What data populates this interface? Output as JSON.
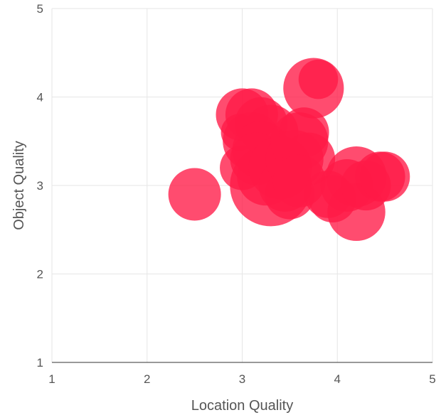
{
  "chart_data": {
    "type": "scatter",
    "variant": "bubble",
    "xlabel": "Location Quality",
    "ylabel": "Object Quality",
    "xlim": [
      1,
      5
    ],
    "ylim": [
      1,
      5
    ],
    "xticks": [
      1,
      2,
      3,
      4,
      5
    ],
    "yticks": [
      1,
      2,
      3,
      4,
      5
    ],
    "grid": true,
    "legend": "none",
    "bubble_color": "#ff1a47",
    "bubble_opacity": 0.78,
    "series": [
      {
        "points": [
          {
            "x": 2.5,
            "y": 2.9,
            "r": 1
          },
          {
            "x": 3.0,
            "y": 3.8,
            "r": 1
          },
          {
            "x": 3.1,
            "y": 3.8,
            "r": 1
          },
          {
            "x": 2.97,
            "y": 3.6,
            "r": 0.7
          },
          {
            "x": 3.2,
            "y": 3.7,
            "r": 1
          },
          {
            "x": 3.3,
            "y": 3.6,
            "r": 1.05
          },
          {
            "x": 3.1,
            "y": 3.5,
            "r": 1.1
          },
          {
            "x": 3.0,
            "y": 3.2,
            "r": 0.85
          },
          {
            "x": 3.2,
            "y": 3.4,
            "r": 1.1
          },
          {
            "x": 3.15,
            "y": 3.3,
            "r": 1
          },
          {
            "x": 3.25,
            "y": 3.1,
            "r": 1.1
          },
          {
            "x": 3.3,
            "y": 3.0,
            "r": 1.55
          },
          {
            "x": 3.4,
            "y": 3.2,
            "r": 1.2
          },
          {
            "x": 3.45,
            "y": 3.0,
            "r": 1
          },
          {
            "x": 3.5,
            "y": 2.9,
            "r": 0.95
          },
          {
            "x": 3.55,
            "y": 3.3,
            "r": 1.1
          },
          {
            "x": 3.6,
            "y": 3.5,
            "r": 1.1
          },
          {
            "x": 3.65,
            "y": 3.6,
            "r": 0.95
          },
          {
            "x": 3.7,
            "y": 3.3,
            "r": 1
          },
          {
            "x": 3.6,
            "y": 3.05,
            "r": 1
          },
          {
            "x": 3.75,
            "y": 4.1,
            "r": 1.15
          },
          {
            "x": 3.8,
            "y": 4.2,
            "r": 0.75
          },
          {
            "x": 3.9,
            "y": 2.9,
            "r": 0.9
          },
          {
            "x": 3.95,
            "y": 2.85,
            "r": 0.9
          },
          {
            "x": 4.1,
            "y": 3.0,
            "r": 1
          },
          {
            "x": 4.2,
            "y": 3.1,
            "r": 1.15
          },
          {
            "x": 4.2,
            "y": 2.7,
            "r": 1.1
          },
          {
            "x": 4.3,
            "y": 3.0,
            "r": 0.95
          },
          {
            "x": 4.45,
            "y": 3.1,
            "r": 0.95
          },
          {
            "x": 4.5,
            "y": 3.1,
            "r": 0.95
          }
        ]
      }
    ]
  }
}
